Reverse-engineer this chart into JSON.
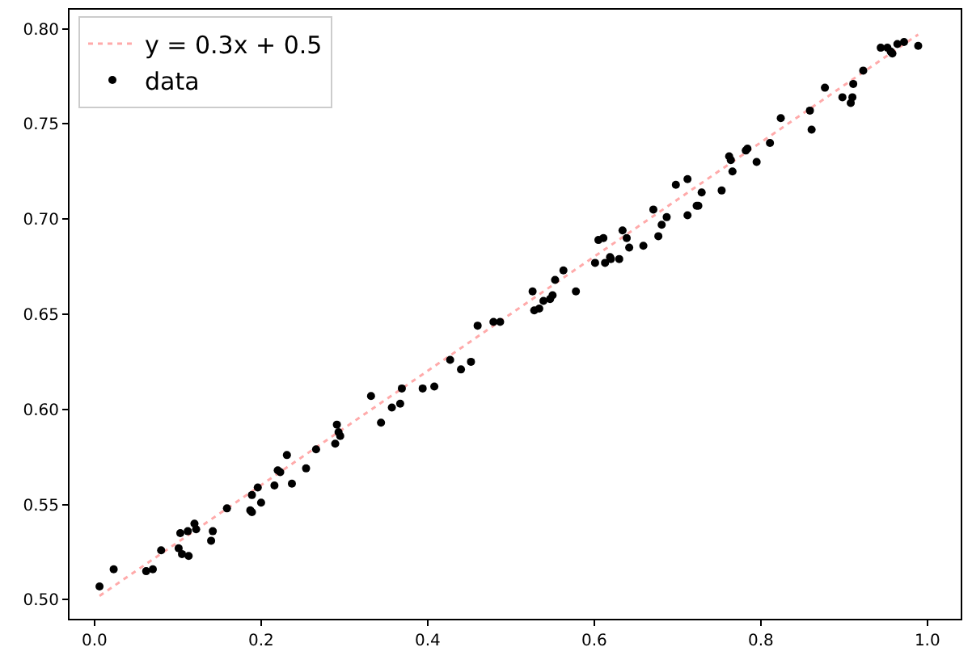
{
  "chart_data": {
    "type": "scatter",
    "xlim": [
      -0.03,
      1.04
    ],
    "ylim": [
      0.49,
      0.81
    ],
    "xticks": [
      {
        "value": 0,
        "label": "0.0"
      },
      {
        "value": 0.2,
        "label": "0.2"
      },
      {
        "value": 0.4,
        "label": "0.4"
      },
      {
        "value": 0.6,
        "label": "0.6"
      },
      {
        "value": 0.8,
        "label": "0.8"
      },
      {
        "value": 1,
        "label": "1.0"
      }
    ],
    "yticks": [
      {
        "value": 0.5,
        "label": "0.50"
      },
      {
        "value": 0.55,
        "label": "0.55"
      },
      {
        "value": 0.6,
        "label": "0.60"
      },
      {
        "value": 0.65,
        "label": "0.65"
      },
      {
        "value": 0.7,
        "label": "0.70"
      },
      {
        "value": 0.75,
        "label": "0.75"
      },
      {
        "value": 0.8,
        "label": "0.80"
      }
    ],
    "grid": false,
    "legend": "top left",
    "series": [
      {
        "name": "y = 0.3x + 0.5",
        "type": "line",
        "line_style": "dotted",
        "marker": "none",
        "color": "#ffaaaa",
        "x": [
          0.006,
          0.989
        ],
        "values": [
          0.502,
          0.797
        ]
      },
      {
        "name": "data",
        "marker": "circle",
        "color": "#000000",
        "x": [
          0.006,
          0.023,
          0.062,
          0.07,
          0.08,
          0.101,
          0.105,
          0.113,
          0.103,
          0.112,
          0.12,
          0.122,
          0.142,
          0.14,
          0.159,
          0.187,
          0.189,
          0.189,
          0.196,
          0.2,
          0.216,
          0.22,
          0.223,
          0.231,
          0.237,
          0.254,
          0.266,
          0.289,
          0.291,
          0.293,
          0.295,
          0.332,
          0.344,
          0.357,
          0.367,
          0.369,
          0.394,
          0.408,
          0.427,
          0.44,
          0.452,
          0.46,
          0.479,
          0.487,
          0.526,
          0.528,
          0.534,
          0.539,
          0.547,
          0.55,
          0.553,
          0.563,
          0.578,
          0.601,
          0.605,
          0.611,
          0.613,
          0.619,
          0.62,
          0.63,
          0.634,
          0.639,
          0.642,
          0.659,
          0.671,
          0.677,
          0.681,
          0.687,
          0.698,
          0.712,
          0.712,
          0.723,
          0.725,
          0.729,
          0.753,
          0.762,
          0.764,
          0.766,
          0.782,
          0.784,
          0.795,
          0.811,
          0.824,
          0.859,
          0.861,
          0.877,
          0.898,
          0.908,
          0.91,
          0.911,
          0.923,
          0.944,
          0.952,
          0.956,
          0.958,
          0.964,
          0.972,
          0.989
        ],
        "values": [
          0.507,
          0.516,
          0.515,
          0.516,
          0.526,
          0.527,
          0.524,
          0.523,
          0.535,
          0.536,
          0.54,
          0.537,
          0.536,
          0.531,
          0.548,
          0.547,
          0.546,
          0.555,
          0.559,
          0.551,
          0.56,
          0.568,
          0.567,
          0.576,
          0.561,
          0.569,
          0.579,
          0.582,
          0.592,
          0.588,
          0.586,
          0.607,
          0.593,
          0.601,
          0.603,
          0.611,
          0.611,
          0.612,
          0.626,
          0.621,
          0.625,
          0.644,
          0.646,
          0.646,
          0.662,
          0.652,
          0.653,
          0.657,
          0.658,
          0.66,
          0.668,
          0.673,
          0.662,
          0.677,
          0.689,
          0.69,
          0.677,
          0.68,
          0.679,
          0.679,
          0.694,
          0.69,
          0.685,
          0.686,
          0.705,
          0.691,
          0.697,
          0.701,
          0.718,
          0.721,
          0.702,
          0.707,
          0.707,
          0.714,
          0.715,
          0.733,
          0.731,
          0.725,
          0.736,
          0.737,
          0.73,
          0.74,
          0.753,
          0.757,
          0.747,
          0.769,
          0.764,
          0.761,
          0.764,
          0.771,
          0.778,
          0.79,
          0.79,
          0.788,
          0.787,
          0.792,
          0.793,
          0.791
        ]
      }
    ]
  }
}
